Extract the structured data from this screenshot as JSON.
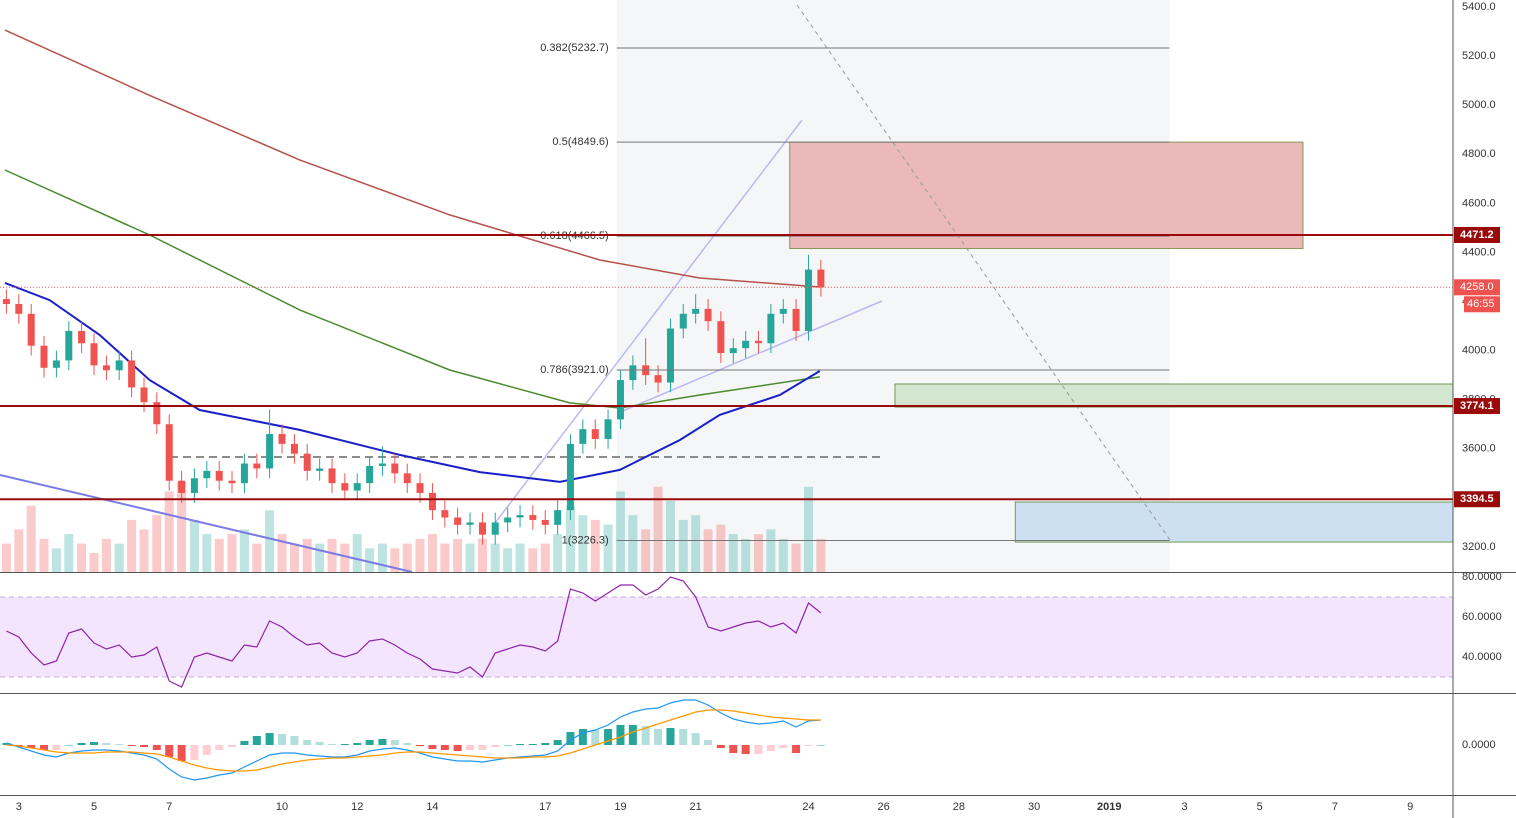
{
  "chart_data": [
    {
      "type": "candlestick",
      "x": [
        2.67,
        3,
        3.33,
        3.67,
        4,
        4.33,
        4.67,
        5,
        5.33,
        5.67,
        6,
        6.33,
        6.67,
        7,
        7.33,
        7.67,
        8,
        8.33,
        8.67,
        9,
        9.33,
        9.67,
        10,
        10.33,
        10.67,
        11,
        11.33,
        11.67,
        12,
        12.33,
        12.67,
        13,
        13.33,
        13.67,
        14,
        14.33,
        14.67,
        15,
        15.33,
        15.67,
        16,
        16.33,
        16.67,
        17,
        17.33,
        17.67,
        18,
        18.33,
        18.67,
        19,
        19.33,
        19.67,
        20,
        20.33,
        20.67,
        21,
        21.33,
        21.67,
        22,
        22.33,
        22.67,
        23,
        23.33,
        23.67,
        24,
        24.33
      ],
      "open": [
        4210,
        4190,
        4150,
        4020,
        3930,
        3960,
        4080,
        4030,
        3940,
        3920,
        3960,
        3850,
        3790,
        3700,
        3470,
        3420,
        3480,
        3510,
        3470,
        3460,
        3540,
        3520,
        3660,
        3620,
        3580,
        3510,
        3520,
        3460,
        3430,
        3460,
        3530,
        3540,
        3500,
        3460,
        3420,
        3350,
        3320,
        3290,
        3300,
        3250,
        3300,
        3320,
        3330,
        3310,
        3290,
        3350,
        3620,
        3680,
        3640,
        3720,
        3880,
        3940,
        3900,
        3870,
        4090,
        4150,
        4170,
        4120,
        3990,
        4010,
        4040,
        4030,
        4150,
        4170,
        4080,
        4330
      ],
      "high": [
        4250,
        4230,
        4190,
        4060,
        4000,
        4120,
        4120,
        4070,
        3980,
        4000,
        4000,
        3890,
        3830,
        3740,
        3510,
        3520,
        3550,
        3550,
        3510,
        3580,
        3580,
        3760,
        3700,
        3660,
        3620,
        3560,
        3560,
        3500,
        3500,
        3570,
        3610,
        3580,
        3540,
        3500,
        3460,
        3390,
        3360,
        3340,
        3340,
        3340,
        3360,
        3370,
        3370,
        3350,
        3390,
        3660,
        3720,
        3720,
        3760,
        3920,
        3980,
        4050,
        3940,
        4130,
        4190,
        4230,
        4210,
        4160,
        4050,
        4080,
        4080,
        4190,
        4210,
        4210,
        4390,
        4370
      ],
      "low": [
        4150,
        4110,
        3980,
        3890,
        3890,
        3920,
        3990,
        3900,
        3880,
        3880,
        3810,
        3750,
        3660,
        3430,
        3380,
        3380,
        3440,
        3430,
        3420,
        3420,
        3480,
        3480,
        3580,
        3540,
        3470,
        3470,
        3420,
        3390,
        3390,
        3420,
        3490,
        3460,
        3420,
        3380,
        3310,
        3280,
        3250,
        3250,
        3210,
        3210,
        3260,
        3280,
        3270,
        3250,
        3250,
        3310,
        3580,
        3600,
        3600,
        3680,
        3840,
        3860,
        3830,
        3830,
        4050,
        4110,
        4080,
        3950,
        3950,
        3970,
        3990,
        3990,
        4110,
        4040,
        4040,
        4220
      ],
      "close": [
        4190,
        4150,
        4020,
        3930,
        3960,
        4080,
        4030,
        3940,
        3920,
        3960,
        3850,
        3790,
        3700,
        3470,
        3420,
        3480,
        3510,
        3470,
        3460,
        3540,
        3520,
        3660,
        3620,
        3580,
        3510,
        3520,
        3460,
        3430,
        3460,
        3530,
        3540,
        3500,
        3460,
        3420,
        3350,
        3320,
        3290,
        3300,
        3250,
        3300,
        3320,
        3330,
        3310,
        3290,
        3350,
        3620,
        3680,
        3640,
        3720,
        3880,
        3940,
        3900,
        3870,
        4090,
        4150,
        4170,
        4120,
        3990,
        4010,
        4040,
        4030,
        4150,
        4170,
        4080,
        4330,
        4258
      ],
      "volume": [
        30,
        45,
        70,
        35,
        25,
        40,
        30,
        20,
        35,
        30,
        55,
        45,
        60,
        85,
        95,
        55,
        40,
        35,
        40,
        45,
        30,
        65,
        40,
        30,
        35,
        30,
        35,
        30,
        40,
        25,
        30,
        25,
        30,
        35,
        40,
        30,
        35,
        30,
        35,
        30,
        25,
        30,
        25,
        30,
        40,
        70,
        60,
        55,
        50,
        85,
        60,
        45,
        90,
        75,
        55,
        60,
        45,
        50,
        40,
        35,
        40,
        45,
        35,
        30,
        90,
        35
      ],
      "up_color": "#26a69a",
      "down_color": "#ef5350",
      "xlim": [
        2.5,
        41.14
      ],
      "ylim": [
        3098,
        5428.5
      ],
      "xticks": [
        3,
        5,
        7,
        10,
        12,
        14,
        17,
        19,
        21,
        24,
        26,
        28,
        30,
        {
          "value": 32,
          "label": "2019"
        },
        {
          "value": 34,
          "label": "3"
        },
        {
          "value": 36,
          "label": "5"
        },
        {
          "value": 38,
          "label": "7"
        },
        {
          "value": 40,
          "label": "9"
        }
      ],
      "yticks": [
        {
          "value": 3200,
          "label": "3200.0"
        },
        {
          "value": 3400,
          "label": "3400.0"
        },
        {
          "value": 3600,
          "label": "3600.0"
        },
        {
          "value": 3800,
          "label": "3800.0"
        },
        {
          "value": 4000,
          "label": "4000.0"
        },
        {
          "value": 4200,
          "label": "4200.0"
        },
        {
          "value": 4400,
          "label": "4400.0"
        },
        {
          "value": 4600,
          "label": "4600.0"
        },
        {
          "value": 4800,
          "label": "4800.0"
        },
        {
          "value": 5000,
          "label": "5000.0"
        },
        {
          "value": 5200,
          "label": "5200.0"
        },
        {
          "value": 5400,
          "label": "5400.0"
        }
      ],
      "grid": true,
      "overlays": [
        {
          "color": "#b5524b",
          "x": [
            2.63,
            6.48,
            10.47,
            14.46,
            18.45,
            21.11,
            24.3
          ],
          "values": [
            5306,
            5040,
            4777,
            4553,
            4369,
            4296,
            4259
          ]
        },
        {
          "color": "#4a8a2e",
          "x": [
            2.63,
            6.48,
            10.47,
            14.46,
            17.65,
            18.98,
            21.11,
            24.3
          ],
          "values": [
            4736,
            4471,
            4166,
            3921,
            3787,
            3766,
            3819,
            3893
          ]
        },
        {
          "color": "#1a1fc8",
          "x": [
            2.63,
            3.82,
            5.15,
            6.48,
            7.81,
            10.47,
            13.13,
            15.26,
            17.39,
            18.98,
            20.58,
            21.64,
            23.24,
            24.3
          ],
          "values": [
            4276,
            4206,
            4064,
            3880,
            3758,
            3677,
            3575,
            3505,
            3465,
            3514,
            3636,
            3738,
            3819,
            3917
          ]
        }
      ],
      "fib": {
        "x": [
          18.9,
          33.6
        ],
        "levels": [
          {
            "value": 5232.7,
            "label": "0.382(5232.7)"
          },
          {
            "value": 4849.6,
            "label": "0.5(4849.6)"
          },
          {
            "value": 4466.5,
            "label": "0.618(4466.5)"
          },
          {
            "value": 3921.0,
            "label": "0.786(3921.0)"
          },
          {
            "value": 3226.3,
            "label": "1(3226.3)"
          }
        ]
      },
      "zones": [
        {
          "x": [
            23.5,
            37.15
          ],
          "y": [
            4416,
            4849.6
          ],
          "fill": "#ebb9b9",
          "stroke": "#8a9a55"
        },
        {
          "x": [
            26.3,
            41.14
          ],
          "y": [
            3770,
            3864
          ],
          "fill": "#d3e6cf",
          "stroke": "#6f9a55"
        },
        {
          "x": [
            29.5,
            41.14
          ],
          "y": [
            3220,
            3383
          ],
          "fill": "#cde0f2",
          "stroke": "#6f9a55"
        }
      ],
      "levels": [
        4471.2,
        3774.1,
        3394.5
      ],
      "level_color": "#9a0a0a",
      "last_price": {
        "value": 4258,
        "label": "4258.0"
      },
      "countdown": "46:55"
    },
    {
      "type": "line",
      "x": [
        2.67,
        3,
        3.33,
        3.67,
        4,
        4.33,
        4.67,
        5,
        5.33,
        5.67,
        6,
        6.33,
        6.67,
        7,
        7.33,
        7.67,
        8,
        8.33,
        8.67,
        9,
        9.33,
        9.67,
        10,
        10.33,
        10.67,
        11,
        11.33,
        11.67,
        12,
        12.33,
        12.67,
        13,
        13.33,
        13.67,
        14,
        14.33,
        14.67,
        15,
        15.33,
        15.67,
        16,
        16.33,
        16.67,
        17,
        17.33,
        17.67,
        18,
        18.33,
        18.67,
        19,
        19.33,
        19.67,
        20,
        20.33,
        20.67,
        21,
        21.33,
        21.67,
        22,
        22.33,
        22.67,
        23,
        23.33,
        23.67,
        24,
        24.33
      ],
      "values": [
        53,
        50,
        42,
        36,
        38,
        52,
        54,
        47,
        44,
        46,
        40,
        41,
        45,
        28,
        25,
        40,
        42,
        40,
        38,
        46,
        45,
        58,
        55,
        50,
        46,
        47,
        42,
        40,
        42,
        48,
        49,
        46,
        42,
        39,
        34,
        33,
        32,
        35,
        30,
        42,
        44,
        46,
        45,
        43,
        48,
        74,
        72,
        68,
        72,
        76,
        76,
        71,
        74,
        80,
        78,
        70,
        55,
        53,
        55,
        57,
        58,
        55,
        57,
        52,
        67,
        62
      ],
      "color": "#8e24aa",
      "ylim": [
        22.5,
        81.5
      ],
      "yticks": [
        {
          "value": 40,
          "label": "40.0000"
        },
        {
          "value": 60,
          "label": "60.0000"
        },
        {
          "value": 80,
          "label": "80.0000"
        }
      ],
      "band": [
        30,
        70
      ],
      "band_color": "#f3e5fd"
    },
    {
      "type": "macd",
      "x": [
        2.67,
        3,
        3.33,
        3.67,
        4,
        4.33,
        4.67,
        5,
        5.33,
        5.67,
        6,
        6.33,
        6.67,
        7,
        7.33,
        7.67,
        8,
        8.33,
        8.67,
        9,
        9.33,
        9.67,
        10,
        10.33,
        10.67,
        11,
        11.33,
        11.67,
        12,
        12.33,
        12.67,
        13,
        13.33,
        13.67,
        14,
        14.33,
        14.67,
        15,
        15.33,
        15.67,
        16,
        16.33,
        16.67,
        17,
        17.33,
        17.67,
        18,
        18.33,
        18.67,
        19,
        19.33,
        19.67,
        20,
        20.33,
        20.67,
        21,
        21.33,
        21.67,
        22,
        22.33,
        22.67,
        23,
        23.33,
        23.67,
        24,
        24.33
      ],
      "series": [
        {
          "color": "#2196f3",
          "values": [
            2,
            -2,
            -6,
            -10,
            -12,
            -8,
            -6,
            -5,
            -5,
            -6,
            -8,
            -10,
            -14,
            -24,
            -32,
            -35,
            -33,
            -30,
            -28,
            -22,
            -16,
            -10,
            -8,
            -8,
            -10,
            -11,
            -12,
            -12,
            -10,
            -6,
            -4,
            -3,
            -5,
            -8,
            -12,
            -14,
            -16,
            -16,
            -17,
            -15,
            -13,
            -12,
            -11,
            -10,
            -6,
            5,
            12,
            15,
            20,
            28,
            33,
            36,
            37,
            42,
            45,
            45,
            40,
            32,
            26,
            23,
            21,
            22,
            24,
            18,
            24,
            25
          ]
        },
        {
          "color": "#ff9800",
          "values": [
            0,
            -1,
            -3,
            -5,
            -7,
            -8,
            -8,
            -8,
            -7,
            -7,
            -7,
            -8,
            -9,
            -12,
            -16,
            -20,
            -23,
            -25,
            -26,
            -26,
            -25,
            -22,
            -19,
            -17,
            -15,
            -14,
            -13,
            -13,
            -12,
            -11,
            -10,
            -8,
            -7,
            -7,
            -8,
            -9,
            -10,
            -11,
            -12,
            -13,
            -13,
            -13,
            -12,
            -12,
            -11,
            -8,
            -4,
            0,
            4,
            8,
            13,
            17,
            21,
            25,
            29,
            33,
            35,
            35,
            34,
            32,
            30,
            28,
            27,
            26,
            25,
            25
          ]
        }
      ],
      "histogram": [
        2,
        -1,
        -3,
        -5,
        -5,
        0,
        2,
        3,
        2,
        1,
        -1,
        -2,
        -5,
        -12,
        -16,
        -15,
        -10,
        -5,
        -2,
        4,
        9,
        12,
        11,
        9,
        5,
        3,
        1,
        1,
        2,
        5,
        6,
        5,
        2,
        -1,
        -4,
        -5,
        -6,
        -5,
        -5,
        -2,
        0,
        1,
        1,
        2,
        5,
        13,
        16,
        15,
        16,
        20,
        20,
        19,
        16,
        17,
        16,
        12,
        5,
        -3,
        -8,
        -9,
        -9,
        -6,
        -3,
        -8,
        -1,
        0
      ],
      "histogram_colors": [
        "#26a69a",
        "#b2dfdb",
        "#ffcdd2",
        "#ef5350"
      ],
      "ylim": [
        -50,
        51
      ],
      "yticks": [
        {
          "value": 0,
          "label": "0.0000"
        }
      ]
    }
  ]
}
